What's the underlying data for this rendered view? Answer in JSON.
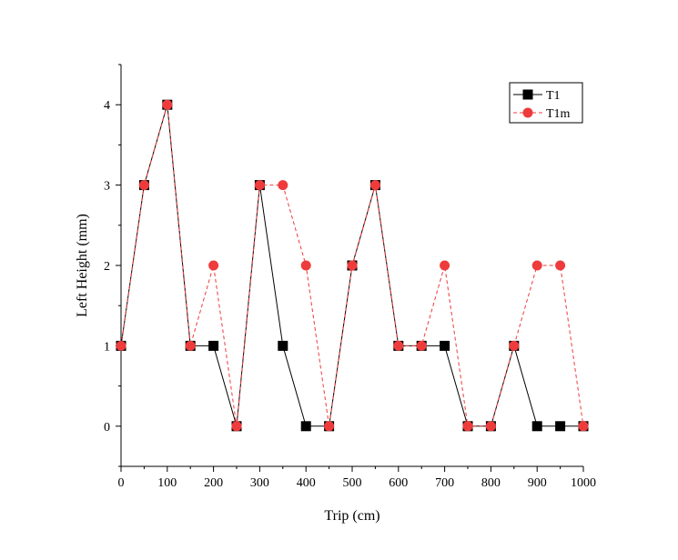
{
  "chart_data": {
    "type": "line",
    "xlabel": "Trip (cm)",
    "ylabel": "Left Height (mm)",
    "xlim": [
      0,
      1000
    ],
    "ylim": [
      -0.5,
      4.5
    ],
    "x_ticks": [
      0,
      100,
      200,
      300,
      400,
      500,
      600,
      700,
      800,
      900,
      1000
    ],
    "y_ticks": [
      0,
      1,
      2,
      3,
      4
    ],
    "grid": false,
    "legend_position": "top-right",
    "x": [
      0,
      50,
      100,
      150,
      200,
      250,
      300,
      350,
      400,
      450,
      500,
      550,
      600,
      650,
      700,
      750,
      800,
      850,
      900,
      950,
      1000
    ],
    "series": [
      {
        "name": "T1",
        "color": "#000000",
        "marker": "square",
        "line_style": "solid",
        "values": [
          1,
          3,
          4,
          1,
          1,
          0,
          3,
          1,
          0,
          0,
          2,
          3,
          1,
          1,
          1,
          0,
          0,
          1,
          0,
          0,
          0
        ]
      },
      {
        "name": "T1m",
        "color": "#ee3b3b",
        "marker": "circle",
        "line_style": "dashed",
        "values": [
          1,
          3,
          4,
          1,
          2,
          0,
          3,
          3,
          2,
          0,
          2,
          3,
          1,
          1,
          2,
          0,
          0,
          1,
          2,
          2,
          0
        ]
      }
    ]
  }
}
